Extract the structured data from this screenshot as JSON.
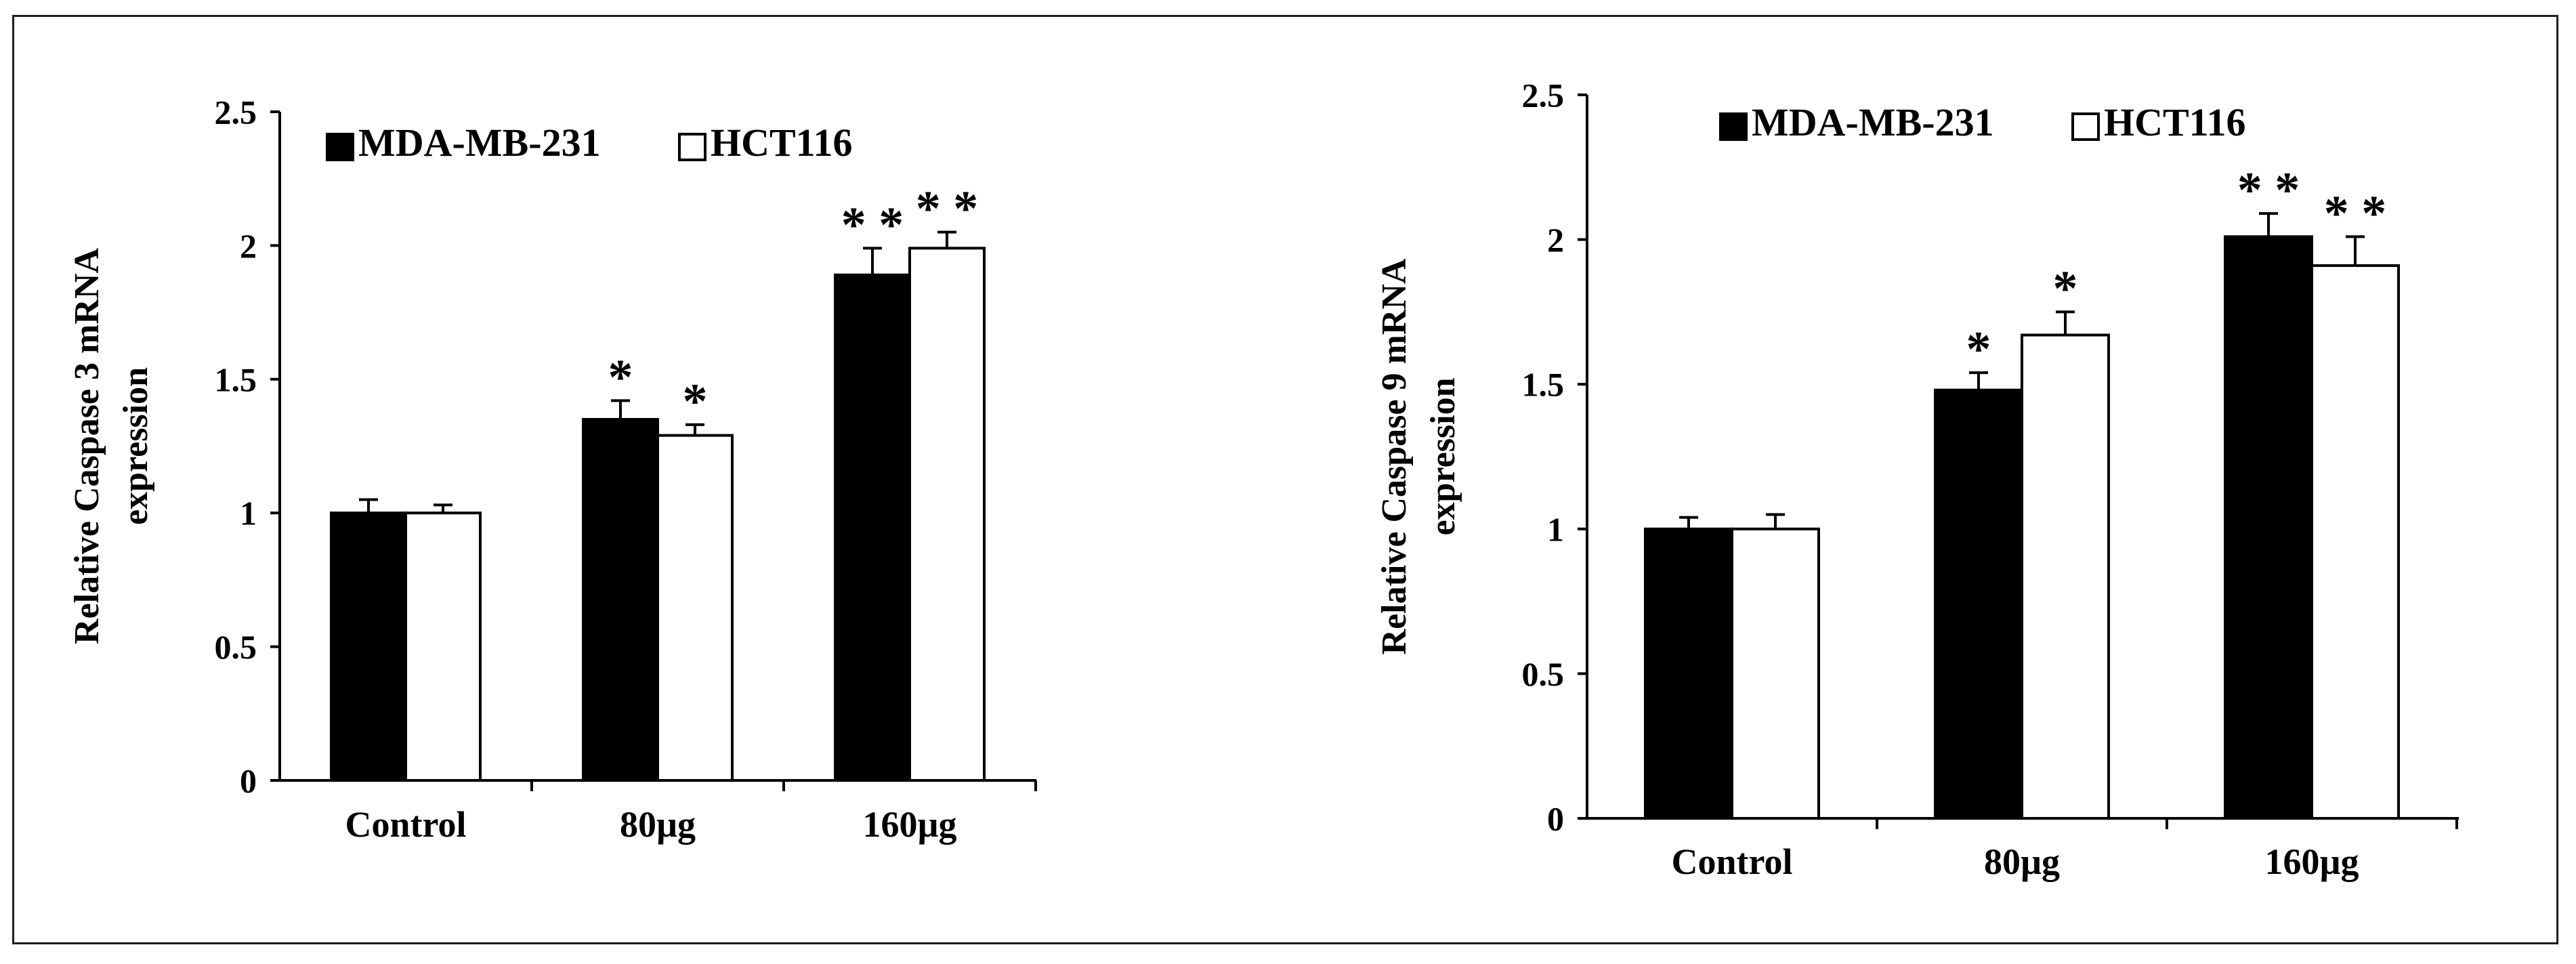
{
  "chart_data": [
    {
      "type": "bar",
      "id": "caspase3",
      "title": "",
      "xlabel": "",
      "ylabel_lines": [
        "Relative Caspase 3 mRNA",
        "expression"
      ],
      "categories": [
        "Control",
        "80µg",
        "160µg"
      ],
      "ylim": [
        0,
        2.5
      ],
      "yticks": [
        0,
        0.5,
        1,
        1.5,
        2,
        2.5
      ],
      "ytick_labels": [
        "0",
        "0.5",
        "1",
        "1.5",
        "2",
        "2.5"
      ],
      "grid": false,
      "legend_position": "top-left",
      "series": [
        {
          "name": "MDA-MB-231",
          "color": "#000000",
          "values": [
            1.0,
            1.35,
            1.89
          ],
          "errors": [
            0.05,
            0.07,
            0.1
          ],
          "significance": [
            "",
            "*",
            "**"
          ]
        },
        {
          "name": "HCT116",
          "color": "#ffffff",
          "values": [
            1.0,
            1.29,
            1.99
          ],
          "errors": [
            0.03,
            0.04,
            0.06
          ],
          "significance": [
            "",
            "*",
            "**"
          ]
        }
      ]
    },
    {
      "type": "bar",
      "id": "caspase9",
      "title": "",
      "xlabel": "",
      "ylabel_lines": [
        "Relative Caspase 9 mRNA",
        "expression"
      ],
      "categories": [
        "Control",
        "80µg",
        "160µg"
      ],
      "ylim": [
        0,
        2.5
      ],
      "yticks": [
        0,
        0.5,
        1,
        1.5,
        2,
        2.5
      ],
      "ytick_labels": [
        "0",
        "0.5",
        "1",
        "1.5",
        "2",
        "2.5"
      ],
      "grid": false,
      "legend_position": "top-left",
      "series": [
        {
          "name": "MDA-MB-231",
          "color": "#000000",
          "values": [
            1.0,
            1.48,
            2.01
          ],
          "errors": [
            0.04,
            0.06,
            0.08
          ],
          "significance": [
            "",
            "*",
            "**"
          ]
        },
        {
          "name": "HCT116",
          "color": "#ffffff",
          "values": [
            1.0,
            1.67,
            1.91
          ],
          "errors": [
            0.05,
            0.08,
            0.1
          ],
          "significance": [
            "",
            "*",
            "**"
          ]
        }
      ]
    }
  ]
}
